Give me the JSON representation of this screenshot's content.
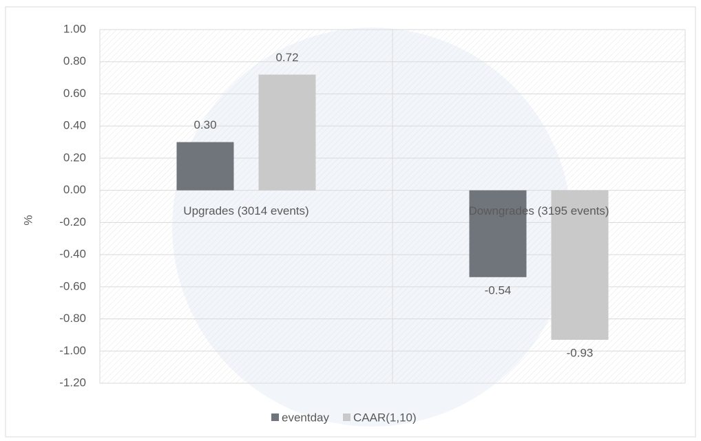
{
  "chart_data": {
    "type": "bar",
    "y_label": "%",
    "categories": [
      "Upgrades (3014 events)",
      "Downgrades (3195 events)"
    ],
    "series": [
      {
        "name": "eventday",
        "color": "#70757b",
        "values": [
          0.3,
          -0.54
        ],
        "value_labels": [
          "0.30",
          "-0.54"
        ]
      },
      {
        "name": "CAAR(1,10)",
        "color": "#c9c9c9",
        "values": [
          0.72,
          -0.93
        ],
        "value_labels": [
          "0.72",
          "-0.93"
        ]
      }
    ],
    "ylim": [
      -1.2,
      1.0
    ],
    "yticks": [
      {
        "value": -1.2,
        "label": "-1.20"
      },
      {
        "value": -1.0,
        "label": "-1.00"
      },
      {
        "value": -0.8,
        "label": "-0.80"
      },
      {
        "value": -0.6,
        "label": "-0.60"
      },
      {
        "value": -0.4,
        "label": "-0.40"
      },
      {
        "value": -0.2,
        "label": "-0.20"
      },
      {
        "value": 0,
        "label": "0.00"
      },
      {
        "value": 0.2,
        "label": "0.20"
      },
      {
        "value": 0.4,
        "label": "0.40"
      },
      {
        "value": 0.6,
        "label": "0.60"
      },
      {
        "value": 0.8,
        "label": "0.80"
      },
      {
        "value": 1.0,
        "label": "1.00"
      }
    ],
    "grid": true,
    "legend": "bottom"
  }
}
